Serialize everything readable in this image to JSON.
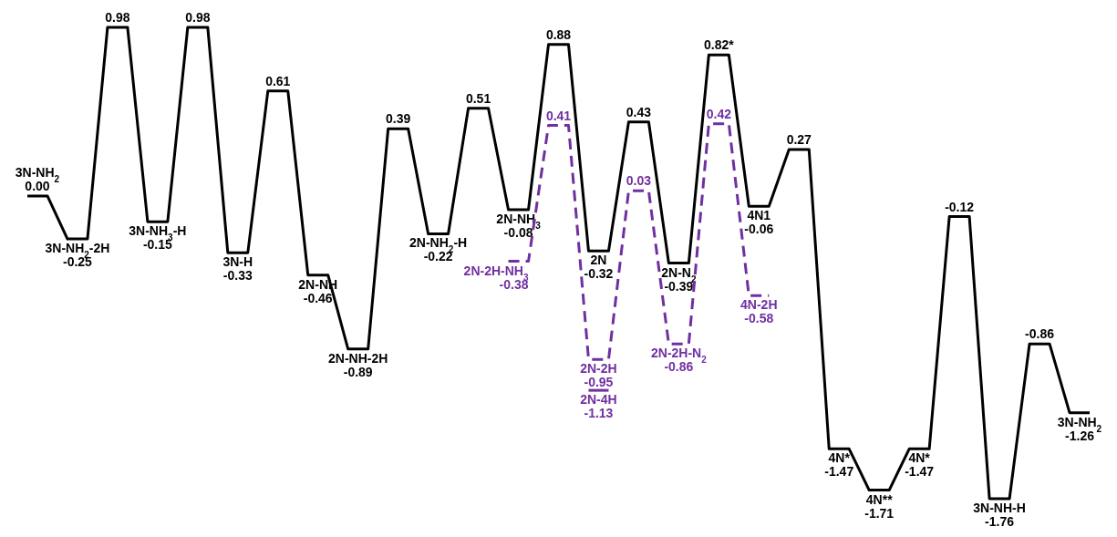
{
  "chart_data": {
    "type": "line",
    "categories": [
      null,
      null,
      null,
      null,
      null,
      null,
      null,
      null,
      null,
      null,
      null,
      null,
      null,
      null,
      null,
      null,
      null,
      null,
      null,
      null,
      null,
      null,
      null,
      null,
      null,
      null,
      null,
      null,
      null,
      null,
      null,
      null,
      null,
      null,
      null,
      null,
      null,
      null,
      null,
      null,
      null,
      null,
      null,
      null,
      null,
      null,
      null,
      null,
      null,
      null,
      null,
      null,
      null,
      null
    ],
    "series": [
      {
        "color": "#000000",
        "line_style": "solid",
        "values": [
          0.0,
          0.0,
          -0.25,
          -0.25,
          0.98,
          0.98,
          -0.15,
          -0.15,
          0.98,
          0.98,
          -0.33,
          -0.33,
          0.61,
          0.61,
          -0.46,
          -0.46,
          -0.89,
          -0.89,
          0.39,
          0.39,
          -0.22,
          -0.22,
          0.51,
          0.51,
          -0.08,
          -0.08,
          0.88,
          0.88,
          -0.32,
          -0.32,
          0.43,
          0.43,
          -0.39,
          -0.39,
          0.82,
          0.82,
          -0.06,
          -0.06,
          0.27,
          0.27,
          -1.47,
          -1.47,
          -1.71,
          -1.71,
          -1.47,
          -1.47,
          -0.12,
          -0.12,
          -1.76,
          -1.76,
          -0.86,
          -0.86,
          -1.26,
          -1.26
        ],
        "value_labels": [
          null,
          "3N-NH$_{2}$\n0.00",
          null,
          "3N-NH$_{2}$-2H\n-0.25",
          null,
          "0.98",
          null,
          "3N-NH$_{3}$-H\n-0.15",
          null,
          "0.98",
          null,
          "3N-H\n-0.33",
          null,
          "0.61",
          null,
          "2N-NH\n-0.46",
          null,
          "2N-NH-2H\n-0.89",
          null,
          "0.39",
          null,
          "2N-NH$_{2}$-H\n-0.22",
          null,
          "0.51",
          null,
          "2N-NH$_{3}$\n-0.08",
          null,
          "0.88",
          null,
          "2N\n-0.32",
          null,
          "0.43",
          null,
          "2N-N$_{2}$\n-0.39",
          null,
          "0.82*",
          null,
          "4N1\n-0.06",
          null,
          "0.27",
          null,
          "4N*\n-1.47",
          null,
          "4N**\n-1.71",
          null,
          "4N*\n-1.47",
          null,
          "-0.12",
          null,
          "3N-NH-H\n-1.76",
          null,
          "-0.86",
          null,
          "3N-NH$_{2}$\n-1.26"
        ]
      },
      {
        "color": "#7030a0",
        "line_style": "dashed",
        "values": [
          null,
          null,
          null,
          null,
          null,
          null,
          null,
          null,
          null,
          null,
          null,
          null,
          null,
          null,
          null,
          null,
          null,
          null,
          null,
          null,
          null,
          null,
          null,
          null,
          -0.38,
          -0.38,
          0.41,
          0.41,
          -0.95,
          -0.95,
          0.03,
          0.03,
          -0.86,
          -0.86,
          0.42,
          0.42,
          -0.58,
          -0.58,
          null,
          null,
          null,
          null,
          null,
          null,
          null,
          null,
          null,
          null,
          null,
          null,
          null,
          null,
          null,
          null
        ],
        "value_labels": [
          null,
          null,
          null,
          null,
          null,
          null,
          null,
          null,
          null,
          null,
          null,
          null,
          null,
          null,
          null,
          null,
          null,
          null,
          null,
          null,
          null,
          null,
          null,
          null,
          null,
          "2N-2H-NH$_{3}$\n-0.38",
          null,
          "0.41",
          null,
          "2N-2H\n-0.95",
          null,
          "0.03",
          null,
          "2N-2H-N$_{2}$\n-0.86",
          null,
          "0.42",
          null,
          "4N-2H\n-0.58",
          null,
          null,
          null,
          null,
          null,
          null,
          null,
          null,
          null,
          null,
          null,
          null,
          null,
          null,
          null,
          null
        ]
      },
      {
        "color": "#7030a0",
        "line_style": "solid",
        "values": [
          null,
          null,
          null,
          null,
          null,
          null,
          null,
          null,
          null,
          null,
          null,
          null,
          null,
          null,
          null,
          null,
          null,
          null,
          null,
          null,
          null,
          null,
          null,
          null,
          null,
          null,
          null,
          null,
          -1.13,
          -1.13,
          null,
          null,
          null,
          null,
          null,
          null,
          null,
          null,
          null,
          null,
          null,
          null,
          null,
          null,
          null,
          null,
          null,
          null,
          null,
          null,
          null,
          null,
          null,
          null
        ],
        "value_labels": [
          null,
          null,
          null,
          null,
          null,
          null,
          null,
          null,
          null,
          null,
          null,
          null,
          null,
          null,
          null,
          null,
          null,
          null,
          null,
          null,
          null,
          null,
          null,
          null,
          null,
          null,
          null,
          null,
          null,
          "2N-4H\n-1.13",
          null,
          null,
          null,
          null,
          null,
          null,
          null,
          null,
          null,
          null,
          null,
          null,
          null,
          null,
          null,
          null,
          null,
          null,
          null,
          null,
          null,
          null,
          null,
          null
        ]
      }
    ]
  }
}
